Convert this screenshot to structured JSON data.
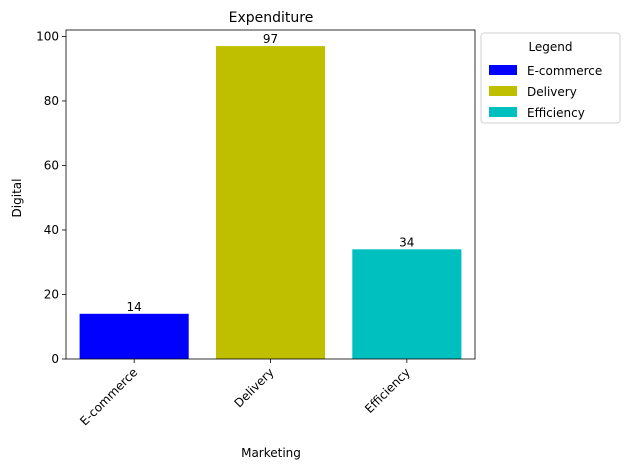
{
  "chart_data": {
    "type": "bar",
    "title": "Expenditure",
    "xlabel": "Marketing",
    "ylabel": "Digital",
    "categories": [
      "E-commerce",
      "Delivery",
      "Efficiency"
    ],
    "values": [
      14,
      97,
      34
    ],
    "colors": [
      "#0000ff",
      "#bfbf00",
      "#00bfbf"
    ],
    "ylim": [
      0,
      102
    ],
    "yticks": [
      0,
      20,
      40,
      60,
      80,
      100
    ],
    "grid": false,
    "legend": {
      "title": "Legend",
      "position": "outside-top-right",
      "entries": [
        "E-commerce",
        "Delivery",
        "Efficiency"
      ]
    }
  }
}
